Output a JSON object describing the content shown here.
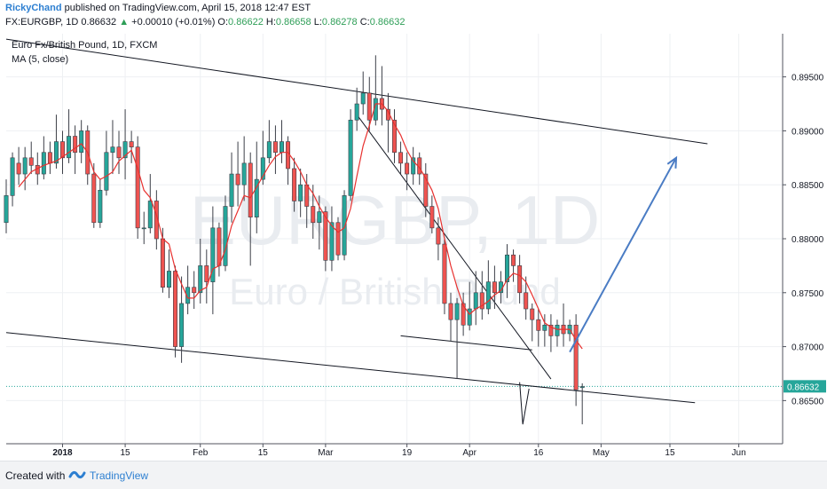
{
  "header": {
    "author": "RickyChand",
    "published": "published on TradingView.com, April 15, 2018 12:47 EST",
    "symbol": "FX:EURGBP, 1D",
    "last": "0.86632",
    "change": "+0.00010 (+0.01%)",
    "o_label": "O:",
    "o_value": "0.86622",
    "h_label": "H:",
    "h_value": "0.86658",
    "l_label": "L:",
    "l_value": "0.86278",
    "c_label": "C:",
    "c_value": "0.86632"
  },
  "overlay": {
    "title": "Euro Fx/British Pound, 1D, FXCM",
    "indicator": "MA (5, close)"
  },
  "watermark": {
    "symbol": "EURGBP, 1D",
    "name": "Euro / British Pound"
  },
  "footer": {
    "created_with": "Created with",
    "brand": "TradingView"
  },
  "colors": {
    "up": "#26a69a",
    "down": "#ef5350",
    "ma": "#e8312f",
    "price_line": "#26a69a",
    "arrow": "#4a7cc4",
    "trend": "#131722"
  },
  "chart_data": {
    "type": "candlestick",
    "title": "Euro Fx/British Pound, 1D, FXCM",
    "y_ticks": [
      "0.89500",
      "0.89000",
      "0.88500",
      "0.88000",
      "0.87500",
      "0.87000",
      "0.86500"
    ],
    "x_ticks": [
      "2018",
      "15",
      "Feb",
      "15",
      "Mar",
      "19",
      "Apr",
      "16",
      "May",
      "15",
      "Jun"
    ],
    "last_price_label": "0.86632",
    "ylim": [
      0.861,
      0.899
    ],
    "xlim": [
      0,
      124
    ],
    "x_tick_positions": [
      9,
      19,
      31,
      41,
      51,
      64,
      74,
      85,
      95,
      106,
      117
    ],
    "candles": [
      [
        0,
        0.8815,
        0.884,
        0.8855,
        0.8805
      ],
      [
        1,
        0.884,
        0.8875,
        0.888,
        0.883
      ],
      [
        2,
        0.887,
        0.886,
        0.8885,
        0.885
      ],
      [
        3,
        0.886,
        0.8875,
        0.8885,
        0.8845
      ],
      [
        4,
        0.8875,
        0.8868,
        0.889,
        0.886
      ],
      [
        5,
        0.8868,
        0.886,
        0.888,
        0.885
      ],
      [
        6,
        0.886,
        0.888,
        0.8895,
        0.8855
      ],
      [
        7,
        0.888,
        0.887,
        0.889,
        0.886
      ],
      [
        8,
        0.887,
        0.889,
        0.8915,
        0.8865
      ],
      [
        9,
        0.889,
        0.8875,
        0.89,
        0.886
      ],
      [
        10,
        0.8875,
        0.8895,
        0.892,
        0.887
      ],
      [
        11,
        0.8895,
        0.888,
        0.8905,
        0.886
      ],
      [
        12,
        0.888,
        0.89,
        0.891,
        0.887
      ],
      [
        13,
        0.89,
        0.886,
        0.8905,
        0.885
      ],
      [
        14,
        0.886,
        0.8815,
        0.887,
        0.881
      ],
      [
        15,
        0.8815,
        0.8845,
        0.8855,
        0.881
      ],
      [
        16,
        0.8845,
        0.888,
        0.89,
        0.884
      ],
      [
        17,
        0.888,
        0.8885,
        0.891,
        0.886
      ],
      [
        18,
        0.8885,
        0.8875,
        0.89,
        0.886
      ],
      [
        19,
        0.8875,
        0.889,
        0.892,
        0.8855
      ],
      [
        20,
        0.889,
        0.8885,
        0.89,
        0.887
      ],
      [
        21,
        0.8885,
        0.881,
        0.8895,
        0.88
      ],
      [
        22,
        0.881,
        0.881,
        0.8825,
        0.8795
      ],
      [
        23,
        0.881,
        0.8835,
        0.886,
        0.8805
      ],
      [
        24,
        0.8835,
        0.88,
        0.8845,
        0.879
      ],
      [
        25,
        0.88,
        0.8755,
        0.881,
        0.875
      ],
      [
        26,
        0.8755,
        0.877,
        0.879,
        0.8745
      ],
      [
        27,
        0.877,
        0.87,
        0.8775,
        0.869
      ],
      [
        28,
        0.87,
        0.874,
        0.8765,
        0.8685
      ],
      [
        29,
        0.874,
        0.8755,
        0.8775,
        0.873
      ],
      [
        30,
        0.8755,
        0.875,
        0.877,
        0.8735
      ],
      [
        31,
        0.875,
        0.8775,
        0.88,
        0.874
      ],
      [
        32,
        0.8775,
        0.876,
        0.879,
        0.874
      ],
      [
        33,
        0.876,
        0.881,
        0.883,
        0.873
      ],
      [
        34,
        0.881,
        0.8775,
        0.8815,
        0.8765
      ],
      [
        35,
        0.8775,
        0.883,
        0.884,
        0.877
      ],
      [
        36,
        0.883,
        0.886,
        0.888,
        0.8815
      ],
      [
        37,
        0.886,
        0.885,
        0.889,
        0.883
      ],
      [
        38,
        0.885,
        0.887,
        0.8895,
        0.8835
      ],
      [
        39,
        0.887,
        0.882,
        0.888,
        0.8775
      ],
      [
        40,
        0.882,
        0.8855,
        0.889,
        0.8805
      ],
      [
        41,
        0.8855,
        0.8875,
        0.89,
        0.885
      ],
      [
        42,
        0.8875,
        0.889,
        0.891,
        0.887
      ],
      [
        43,
        0.889,
        0.888,
        0.8905,
        0.886
      ],
      [
        44,
        0.888,
        0.889,
        0.891,
        0.887
      ],
      [
        45,
        0.889,
        0.8865,
        0.8895,
        0.885
      ],
      [
        46,
        0.8865,
        0.8835,
        0.8875,
        0.8825
      ],
      [
        47,
        0.8835,
        0.885,
        0.8865,
        0.882
      ],
      [
        48,
        0.885,
        0.883,
        0.886,
        0.881
      ],
      [
        49,
        0.883,
        0.8815,
        0.885,
        0.88
      ],
      [
        50,
        0.8815,
        0.8825,
        0.884,
        0.879
      ],
      [
        51,
        0.8825,
        0.878,
        0.883,
        0.877
      ],
      [
        52,
        0.878,
        0.8815,
        0.883,
        0.877
      ],
      [
        53,
        0.8815,
        0.8785,
        0.882,
        0.878
      ],
      [
        54,
        0.8785,
        0.884,
        0.8845,
        0.878
      ],
      [
        55,
        0.884,
        0.891,
        0.892,
        0.8835
      ],
      [
        56,
        0.891,
        0.8925,
        0.894,
        0.89
      ],
      [
        57,
        0.8925,
        0.8935,
        0.8955,
        0.8915
      ],
      [
        58,
        0.8935,
        0.891,
        0.895,
        0.89
      ],
      [
        59,
        0.891,
        0.893,
        0.897,
        0.8905
      ],
      [
        60,
        0.893,
        0.892,
        0.896,
        0.8905
      ],
      [
        61,
        0.892,
        0.891,
        0.8935,
        0.888
      ],
      [
        62,
        0.891,
        0.888,
        0.892,
        0.887
      ],
      [
        63,
        0.888,
        0.887,
        0.889,
        0.886
      ],
      [
        64,
        0.887,
        0.886,
        0.888,
        0.8845
      ],
      [
        65,
        0.886,
        0.8875,
        0.8885,
        0.885
      ],
      [
        66,
        0.8875,
        0.886,
        0.888,
        0.885
      ],
      [
        67,
        0.886,
        0.883,
        0.887,
        0.882
      ],
      [
        68,
        0.883,
        0.881,
        0.884,
        0.8805
      ],
      [
        69,
        0.881,
        0.8795,
        0.882,
        0.878
      ],
      [
        70,
        0.8795,
        0.874,
        0.88,
        0.873
      ],
      [
        71,
        0.874,
        0.8725,
        0.875,
        0.8705
      ],
      [
        72,
        0.8725,
        0.874,
        0.8745,
        0.867
      ],
      [
        73,
        0.874,
        0.872,
        0.875,
        0.871
      ],
      [
        74,
        0.872,
        0.8735,
        0.876,
        0.8715
      ],
      [
        75,
        0.8735,
        0.875,
        0.877,
        0.872
      ],
      [
        76,
        0.875,
        0.8735,
        0.877,
        0.8725
      ],
      [
        77,
        0.8735,
        0.876,
        0.878,
        0.873
      ],
      [
        78,
        0.876,
        0.875,
        0.8775,
        0.8735
      ],
      [
        79,
        0.875,
        0.876,
        0.877,
        0.874
      ],
      [
        80,
        0.876,
        0.8785,
        0.8795,
        0.8745
      ],
      [
        81,
        0.8785,
        0.8775,
        0.879,
        0.876
      ],
      [
        82,
        0.8775,
        0.875,
        0.8785,
        0.874
      ],
      [
        83,
        0.875,
        0.8735,
        0.8765,
        0.8725
      ],
      [
        84,
        0.8735,
        0.8725,
        0.874,
        0.8705
      ],
      [
        85,
        0.8725,
        0.8715,
        0.8735,
        0.87
      ],
      [
        86,
        0.8715,
        0.872,
        0.873,
        0.87
      ],
      [
        87,
        0.872,
        0.871,
        0.873,
        0.8695
      ],
      [
        88,
        0.871,
        0.872,
        0.8725,
        0.87
      ],
      [
        89,
        0.872,
        0.8712,
        0.874,
        0.87
      ],
      [
        90,
        0.8712,
        0.872,
        0.8725,
        0.8705
      ],
      [
        91,
        0.872,
        0.866,
        0.873,
        0.8645
      ],
      [
        92,
        0.8662,
        0.8663,
        0.8666,
        0.8628
      ]
    ],
    "ma": {
      "name": "MA (5, close)",
      "points": [
        [
          2,
          0.8848
        ],
        [
          4,
          0.8862
        ],
        [
          6,
          0.8868
        ],
        [
          8,
          0.8872
        ],
        [
          10,
          0.888
        ],
        [
          12,
          0.8888
        ],
        [
          13,
          0.888
        ],
        [
          14,
          0.8862
        ],
        [
          15,
          0.8855
        ],
        [
          16,
          0.8858
        ],
        [
          17,
          0.8862
        ],
        [
          18,
          0.8872
        ],
        [
          20,
          0.8882
        ],
        [
          21,
          0.8865
        ],
        [
          22,
          0.8845
        ],
        [
          23,
          0.8838
        ],
        [
          24,
          0.8822
        ],
        [
          25,
          0.88
        ],
        [
          26,
          0.8795
        ],
        [
          27,
          0.8772
        ],
        [
          28,
          0.8758
        ],
        [
          29,
          0.8745
        ],
        [
          30,
          0.8745
        ],
        [
          31,
          0.8752
        ],
        [
          32,
          0.8755
        ],
        [
          33,
          0.8772
        ],
        [
          34,
          0.8775
        ],
        [
          35,
          0.879
        ],
        [
          36,
          0.8812
        ],
        [
          37,
          0.8826
        ],
        [
          38,
          0.884
        ],
        [
          39,
          0.8838
        ],
        [
          40,
          0.8848
        ],
        [
          41,
          0.8858
        ],
        [
          42,
          0.8868
        ],
        [
          43,
          0.8876
        ],
        [
          44,
          0.888
        ],
        [
          45,
          0.888
        ],
        [
          46,
          0.8872
        ],
        [
          47,
          0.8862
        ],
        [
          48,
          0.885
        ],
        [
          49,
          0.8842
        ],
        [
          50,
          0.883
        ],
        [
          51,
          0.882
        ],
        [
          52,
          0.8812
        ],
        [
          53,
          0.8806
        ],
        [
          54,
          0.881
        ],
        [
          55,
          0.8828
        ],
        [
          56,
          0.8858
        ],
        [
          57,
          0.8886
        ],
        [
          58,
          0.8905
        ],
        [
          59,
          0.8925
        ],
        [
          60,
          0.8925
        ],
        [
          61,
          0.8918
        ],
        [
          62,
          0.8906
        ],
        [
          63,
          0.8896
        ],
        [
          64,
          0.8882
        ],
        [
          65,
          0.8872
        ],
        [
          66,
          0.8866
        ],
        [
          67,
          0.8856
        ],
        [
          68,
          0.8845
        ],
        [
          69,
          0.8828
        ],
        [
          70,
          0.88
        ],
        [
          71,
          0.8775
        ],
        [
          72,
          0.8755
        ],
        [
          73,
          0.8738
        ],
        [
          74,
          0.873
        ],
        [
          75,
          0.8735
        ],
        [
          76,
          0.8738
        ],
        [
          77,
          0.8742
        ],
        [
          78,
          0.8748
        ],
        [
          79,
          0.8752
        ],
        [
          80,
          0.8762
        ],
        [
          81,
          0.8768
        ],
        [
          82,
          0.8766
        ],
        [
          83,
          0.876
        ],
        [
          84,
          0.8748
        ],
        [
          85,
          0.8735
        ],
        [
          86,
          0.8722
        ],
        [
          87,
          0.8718
        ],
        [
          88,
          0.8716
        ],
        [
          89,
          0.8716
        ],
        [
          90,
          0.8716
        ],
        [
          91,
          0.8706
        ],
        [
          92,
          0.8698
        ]
      ]
    },
    "trendlines": [
      {
        "name": "upper-channel",
        "from": [
          0,
          0.8985
        ],
        "to": [
          112,
          0.8888
        ]
      },
      {
        "name": "lower-channel",
        "from": [
          0,
          0.8713
        ],
        "to": [
          110,
          0.8648
        ]
      },
      {
        "name": "descending-resistance",
        "from": [
          56,
          0.8915
        ],
        "to": [
          87,
          0.867
        ]
      },
      {
        "name": "support-segment",
        "from": [
          63,
          0.871
        ],
        "to": [
          84,
          0.8697
        ]
      }
    ],
    "price_line": 0.86632,
    "arrow": {
      "from": [
        90,
        0.8695
      ],
      "to": [
        107,
        0.8875
      ]
    },
    "pivot": {
      "from": [
        82,
        0.8667
      ],
      "mid": [
        82.5,
        0.8628
      ],
      "to": [
        83.5,
        0.8661
      ]
    }
  }
}
